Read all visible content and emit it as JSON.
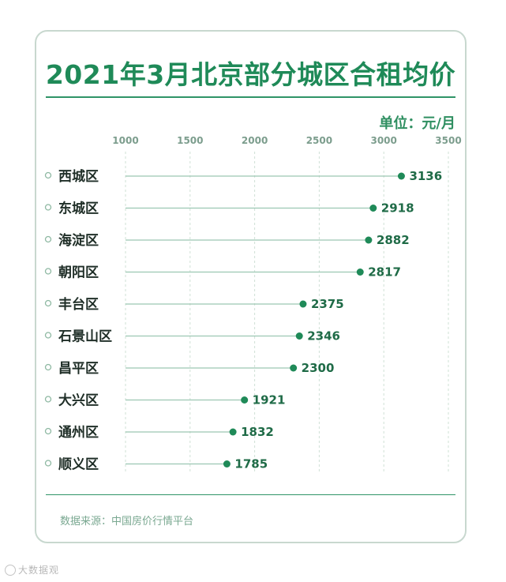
{
  "card": {
    "title": "2021年3月北京部分城区合租均价",
    "unit": "单位：元/月",
    "source": "数据来源：中国房价行情平台"
  },
  "watermark": {
    "text": "大数据观"
  },
  "colors": {
    "accent": "#1f8a58",
    "line": "#9cc7b2",
    "dot": "#1f8a58",
    "grid": "#cfe0d6"
  },
  "chart_data": {
    "type": "dot-bar",
    "title": "2021年3月北京部分城区合租均价",
    "unit": "单位：元/月",
    "categories": [
      "西城区",
      "东城区",
      "海淀区",
      "朝阳区",
      "丰台区",
      "石景山区",
      "昌平区",
      "大兴区",
      "通州区",
      "顺义区"
    ],
    "values": [
      3136,
      2918,
      2882,
      2817,
      2375,
      2346,
      2300,
      1921,
      1832,
      1785
    ],
    "xticks": [
      1000,
      1500,
      2000,
      2500,
      3000,
      3500
    ],
    "xlim": [
      1000,
      3500
    ],
    "grid": true,
    "orientation": "horizontal"
  }
}
